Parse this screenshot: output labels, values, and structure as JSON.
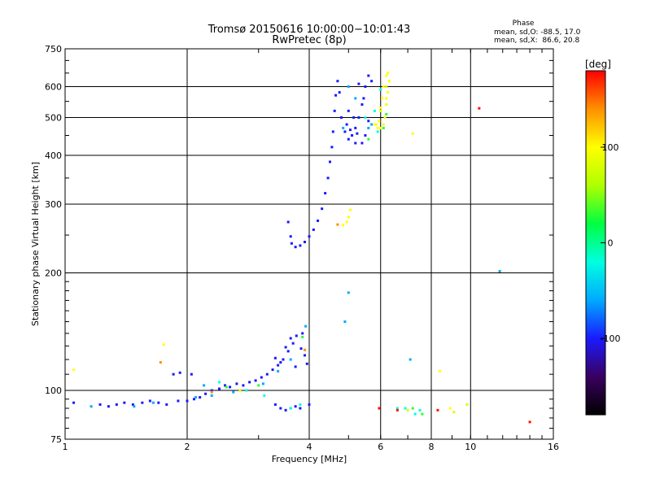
{
  "chart_data": {
    "type": "scatter",
    "title": "Tromsø 20150616 10:00:00−10:01:43",
    "subtitle": "RwPretec (8p)",
    "xlabel": "Frequency [MHz]",
    "ylabel": "Stationary phase Virtual Height [km]",
    "xscale": "log",
    "yscale": "log",
    "xlim": [
      1,
      16
    ],
    "ylim": [
      75,
      750
    ],
    "x_ticks": [
      1,
      2,
      4,
      6,
      8,
      10,
      16
    ],
    "x_tick_labels": [
      "1",
      "2",
      "4",
      "6",
      "8",
      "10",
      "16"
    ],
    "y_ticks": [
      75,
      100,
      200,
      300,
      400,
      500,
      600,
      750
    ],
    "y_tick_labels": [
      "75",
      "100",
      "200",
      "300",
      "400",
      "500",
      "600",
      "750"
    ],
    "grid": true,
    "phase_stats": {
      "header": "Phase",
      "line_o": "mean, sd,O: -88.5, 17.0",
      "line_x": "mean, sd,X:  86.6, 20.8"
    },
    "colorbar": {
      "label": "[deg]",
      "range": [
        -180,
        180
      ],
      "ticks": [
        100,
        0,
        -100
      ],
      "tick_labels": [
        "100",
        "0",
        "-100"
      ],
      "stops": [
        "#000000",
        "#3a0060",
        "#1a1aff",
        "#00aaff",
        "#00ffe0",
        "#00ff40",
        "#b0ff00",
        "#ffff00",
        "#ff9000",
        "#ff0000"
      ]
    },
    "series": [
      {
        "phase_deg": -100,
        "points": [
          [
            1.05,
            93
          ],
          [
            1.22,
            92
          ],
          [
            1.28,
            91
          ],
          [
            1.34,
            92
          ],
          [
            1.4,
            93
          ],
          [
            1.47,
            92
          ],
          [
            1.55,
            93
          ],
          [
            1.62,
            94
          ],
          [
            1.7,
            93
          ],
          [
            1.78,
            92
          ],
          [
            1.9,
            94
          ],
          [
            2.0,
            94
          ],
          [
            2.08,
            95
          ],
          [
            2.15,
            96
          ],
          [
            2.22,
            98
          ],
          [
            2.3,
            100
          ],
          [
            2.4,
            101
          ],
          [
            2.48,
            103
          ],
          [
            2.55,
            102
          ],
          [
            2.65,
            104
          ],
          [
            2.75,
            103
          ],
          [
            2.85,
            105
          ],
          [
            2.95,
            106
          ],
          [
            3.05,
            108
          ],
          [
            3.15,
            110
          ],
          [
            3.25,
            113
          ],
          [
            3.35,
            116
          ],
          [
            3.45,
            120
          ],
          [
            3.55,
            126
          ],
          [
            3.65,
            132
          ],
          [
            3.72,
            138
          ],
          [
            3.82,
            128
          ],
          [
            3.9,
            123
          ],
          [
            3.95,
            117
          ],
          [
            3.5,
            129
          ],
          [
            3.6,
            136
          ],
          [
            3.4,
            118
          ],
          [
            3.7,
            115
          ],
          [
            3.85,
            140
          ],
          [
            3.3,
            121
          ],
          [
            1.85,
            110
          ],
          [
            1.92,
            111
          ],
          [
            2.05,
            110
          ],
          [
            3.3,
            92
          ],
          [
            3.4,
            90
          ],
          [
            3.5,
            89
          ],
          [
            3.6,
            90
          ],
          [
            3.7,
            91
          ],
          [
            3.8,
            90
          ],
          [
            4.0,
            92
          ],
          [
            3.55,
            270
          ],
          [
            3.6,
            248
          ],
          [
            3.62,
            238
          ],
          [
            3.7,
            233
          ],
          [
            3.8,
            235
          ],
          [
            3.9,
            240
          ],
          [
            4.0,
            248
          ],
          [
            4.1,
            258
          ],
          [
            4.2,
            272
          ],
          [
            4.3,
            292
          ],
          [
            4.38,
            320
          ],
          [
            4.45,
            350
          ],
          [
            4.5,
            385
          ],
          [
            4.55,
            420
          ],
          [
            4.58,
            460
          ],
          [
            4.62,
            520
          ],
          [
            4.65,
            570
          ],
          [
            4.7,
            620
          ],
          [
            4.75,
            580
          ],
          [
            4.8,
            500
          ],
          [
            4.9,
            460
          ],
          [
            5.0,
            440
          ],
          [
            5.1,
            450
          ],
          [
            5.2,
            470
          ],
          [
            5.3,
            500
          ],
          [
            5.4,
            540
          ],
          [
            5.5,
            600
          ],
          [
            5.6,
            640
          ],
          [
            5.7,
            620
          ],
          [
            5.5,
            450
          ],
          [
            5.4,
            430
          ],
          [
            5.0,
            520
          ],
          [
            5.2,
            430
          ],
          [
            5.3,
            610
          ],
          [
            5.6,
            490
          ],
          [
            4.95,
            480
          ],
          [
            5.15,
            500
          ],
          [
            5.45,
            560
          ],
          [
            5.25,
            455
          ],
          [
            5.05,
            465
          ]
        ]
      },
      {
        "phase_deg": -60,
        "points": [
          [
            1.16,
            91
          ],
          [
            1.48,
            91
          ],
          [
            2.1,
            96
          ],
          [
            2.3,
            97
          ],
          [
            2.6,
            99
          ],
          [
            3.08,
            104
          ],
          [
            3.35,
            112
          ],
          [
            3.6,
            120
          ],
          [
            5.0,
            600
          ],
          [
            5.2,
            560
          ],
          [
            5.6,
            470
          ],
          [
            3.92,
            146
          ],
          [
            2.2,
            103
          ],
          [
            1.65,
            93
          ],
          [
            5.7,
            480
          ],
          [
            4.85,
            470
          ],
          [
            5.0,
            178
          ],
          [
            4.9,
            150
          ],
          [
            11.8,
            202
          ],
          [
            7.1,
            120
          ]
        ]
      },
      {
        "phase_deg": -20,
        "points": [
          [
            2.4,
            105
          ],
          [
            2.8,
            100
          ],
          [
            3.1,
            97
          ],
          [
            3.6,
            90
          ],
          [
            3.8,
            92
          ],
          [
            5.5,
            500
          ],
          [
            5.8,
            520
          ],
          [
            7.3,
            87
          ],
          [
            6.9,
            90
          ],
          [
            6.0,
            590
          ],
          [
            6.2,
            540
          ],
          [
            5.9,
            460
          ],
          [
            6.6,
            90
          ],
          [
            7.5,
            89
          ]
        ]
      },
      {
        "phase_deg": 30,
        "points": [
          [
            2.5,
            102
          ],
          [
            3.0,
            103
          ],
          [
            3.85,
            137
          ],
          [
            5.6,
            440
          ],
          [
            6.1,
            470
          ],
          [
            6.2,
            510
          ],
          [
            7.2,
            90
          ],
          [
            7.6,
            87
          ]
        ]
      },
      {
        "phase_deg": 80,
        "points": [
          [
            2.7,
            100
          ],
          [
            6.0,
            520
          ],
          [
            6.2,
            600
          ],
          [
            7.0,
            89
          ],
          [
            9.1,
            88
          ],
          [
            9.8,
            92
          ]
        ]
      },
      {
        "phase_deg": 100,
        "points": [
          [
            5.8,
            480
          ],
          [
            5.9,
            470
          ],
          [
            6.0,
            470
          ],
          [
            6.1,
            480
          ],
          [
            6.15,
            500
          ],
          [
            6.2,
            540
          ],
          [
            6.25,
            580
          ],
          [
            6.3,
            620
          ],
          [
            6.25,
            650
          ],
          [
            6.2,
            640
          ],
          [
            6.1,
            600
          ],
          [
            6.05,
            560
          ],
          [
            5.95,
            490
          ],
          [
            5.85,
            480
          ],
          [
            6.0,
            530
          ],
          [
            6.2,
            560
          ],
          [
            4.95,
            270
          ],
          [
            5.0,
            278
          ],
          [
            5.05,
            290
          ],
          [
            4.85,
            265
          ],
          [
            7.2,
            455
          ],
          [
            8.4,
            112
          ],
          [
            1.05,
            113
          ],
          [
            1.75,
            131
          ],
          [
            8.9,
            90
          ]
        ]
      },
      {
        "phase_deg": 140,
        "points": [
          [
            1.72,
            118
          ],
          [
            2.3,
            99
          ],
          [
            4.7,
            266
          ],
          [
            3.9,
            127
          ]
        ]
      },
      {
        "phase_deg": 175,
        "points": [
          [
            10.5,
            528
          ],
          [
            5.95,
            90
          ],
          [
            6.6,
            89
          ],
          [
            8.3,
            89
          ],
          [
            14.0,
            83
          ]
        ]
      }
    ]
  }
}
